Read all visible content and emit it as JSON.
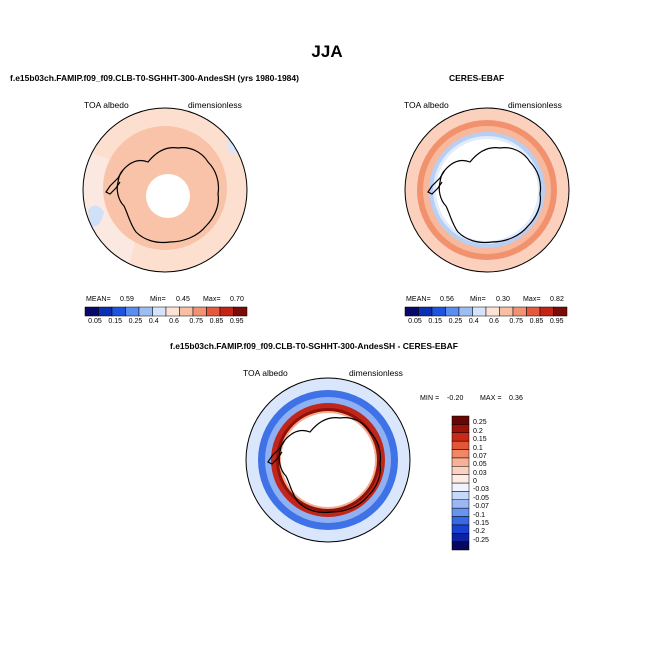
{
  "page": {
    "season": "JJA",
    "diff_title": "f.e15b03ch.FAMIP.f09_f09.CLB-T0-SGHHT-300-AndesSH - CERES-EBAF"
  },
  "colors": {
    "bg": "#ffffff",
    "land": "#ffffff",
    "coast": "#000000",
    "pole_hole": "#ffffff",
    "blue_red_scale": [
      "#08086b",
      "#0b2fb0",
      "#1f54e0",
      "#5b8cef",
      "#9dbdf5",
      "#d3e4fb",
      "#fde3d6",
      "#f9bfa3",
      "#f39272",
      "#e55a3c",
      "#c42318",
      "#7a0b06"
    ],
    "diff_scale": [
      "#07075e",
      "#0a22a3",
      "#1941d2",
      "#3669e8",
      "#6794f0",
      "#99b8f5",
      "#c7d9f9",
      "#eef3fd",
      "#fdece5",
      "#fbd2c1",
      "#f8b096",
      "#f08765",
      "#e35739",
      "#c72a16",
      "#9a1208",
      "#670704"
    ]
  },
  "chart_data": [
    {
      "type": "heatmap",
      "projection": "south-polar-stereographic",
      "title": "f.e15b03ch.FAMIP.f09_f09.CLB-T0-SGHHT-300-AndesSH (yrs 1980-1984)",
      "variable": "TOA albedo",
      "units": "dimensionless",
      "stats": {
        "mean_label": "MEAN=",
        "mean": "0.59",
        "min_label": "Min=",
        "min": "0.45",
        "max_label": "Max=",
        "max": "0.70"
      },
      "colorbar_levels": [
        "0.05",
        "0.15",
        "0.25",
        "0.4",
        "0.6",
        "0.75",
        "0.85",
        "0.95"
      ],
      "field": [
        {
          "region": "outer-ocean",
          "value": 0.55
        },
        {
          "region": "south-pacific-sector",
          "value": 0.5
        },
        {
          "region": "circumpolar-ring",
          "value": 0.62
        },
        {
          "region": "antarctica",
          "value": 0.68
        }
      ]
    },
    {
      "type": "heatmap",
      "projection": "south-polar-stereographic",
      "title": "CERES-EBAF",
      "variable": "TOA albedo",
      "units": "dimensionless",
      "stats": {
        "mean_label": "MEAN=",
        "mean": "0.56",
        "min_label": "Min=",
        "min": "0.30",
        "max_label": "Max=",
        "max": "0.82"
      },
      "colorbar_levels": [
        "0.05",
        "0.15",
        "0.25",
        "0.4",
        "0.6",
        "0.75",
        "0.85",
        "0.95"
      ],
      "field": [
        {
          "region": "outer-ocean",
          "value": 0.6
        },
        {
          "region": "midlatitude-band",
          "value": 0.65
        },
        {
          "region": "sea-ice-edge",
          "value": 0.35
        },
        {
          "region": "inner-ring",
          "value": 0.55
        }
      ]
    },
    {
      "type": "heatmap",
      "projection": "south-polar-stereographic",
      "title": "f.e15b03ch.FAMIP.f09_f09.CLB-T0-SGHHT-300-AndesSH - CERES-EBAF",
      "variable": "TOA albedo",
      "units": "dimensionless",
      "stats": {
        "min_label": "MIN =",
        "min": "-0.20",
        "max_label": "MAX =",
        "max": "0.36"
      },
      "colorbar_levels": [
        "0.25",
        "0.2",
        "0.15",
        "0.1",
        "0.07",
        "0.05",
        "0.03",
        "0",
        "-0.03",
        "-0.05",
        "-0.07",
        "-0.1",
        "-0.15",
        "-0.2",
        "-0.25"
      ],
      "field": [
        {
          "region": "outer-ocean",
          "value": -0.03
        },
        {
          "region": "midlatitude-band",
          "value": -0.1
        },
        {
          "region": "sea-ice-edge",
          "value": 0.25
        },
        {
          "region": "inner-ring",
          "value": 0.05
        }
      ]
    }
  ]
}
